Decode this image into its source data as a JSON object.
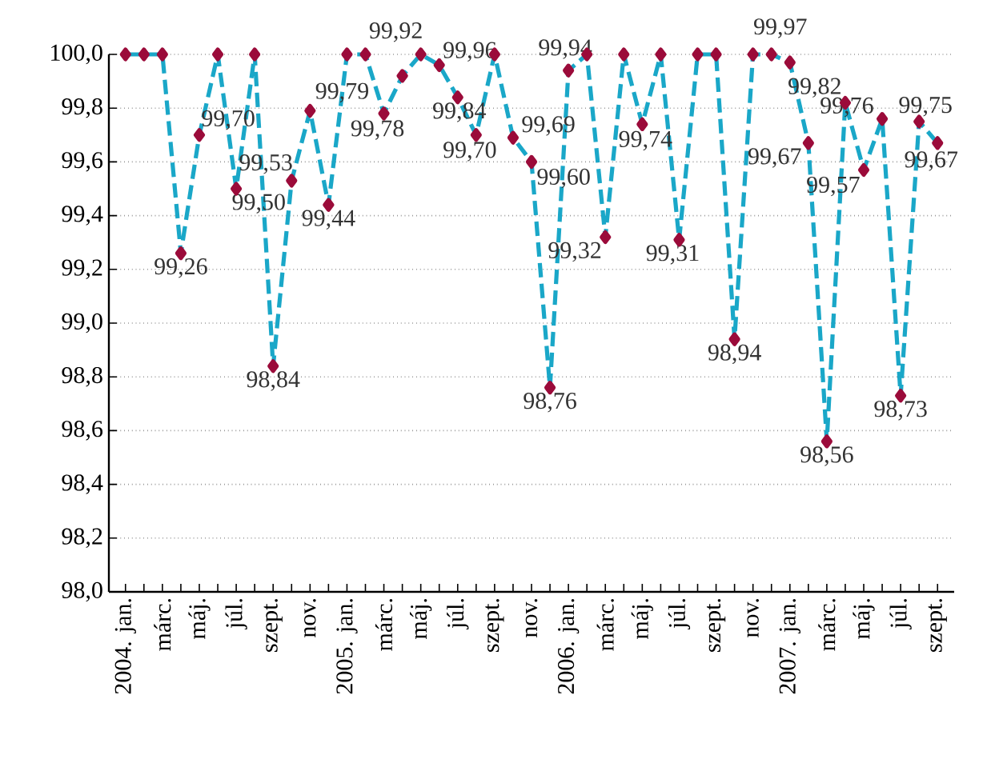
{
  "chart_data": {
    "type": "line",
    "categories": [
      "2004. jan.",
      null,
      "márc.",
      null,
      "máj.",
      null,
      "júl.",
      null,
      "szept.",
      null,
      "nov.",
      null,
      "2005. jan.",
      null,
      "márc.",
      null,
      "máj.",
      null,
      "júl.",
      null,
      "szept.",
      null,
      "nov.",
      null,
      "2006. jan.",
      null,
      "márc.",
      null,
      "máj.",
      null,
      "júl.",
      null,
      "szept.",
      null,
      "nov.",
      null,
      "2007. jan.",
      null,
      "márc.",
      null,
      "máj.",
      null,
      "júl.",
      null,
      "szept."
    ],
    "series": [
      {
        "color": "#1aa7c8",
        "values": [
          100,
          100,
          100,
          99.26,
          99.7,
          100,
          99.5,
          100,
          98.84,
          99.53,
          99.79,
          99.44,
          100,
          100,
          99.78,
          99.92,
          100,
          99.96,
          99.84,
          99.7,
          100,
          99.69,
          99.6,
          98.76,
          99.94,
          100,
          99.32,
          100,
          99.74,
          100,
          99.31,
          100,
          100,
          98.94,
          100,
          100,
          99.97,
          99.67,
          98.56,
          99.82,
          99.57,
          99.76,
          98.73,
          99.75,
          99.67
        ],
        "value_labels": [
          null,
          null,
          null,
          "99,26",
          "99,70",
          null,
          "99,50",
          null,
          "98,84",
          "99,53",
          "99,79",
          "99,44",
          null,
          null,
          "99,78",
          "99,92",
          null,
          "99,96",
          "99,84",
          "99,70",
          null,
          "99,69",
          "99,60",
          "98,76",
          "99,94",
          null,
          "99,32",
          null,
          "99,74",
          null,
          "99,31",
          null,
          null,
          "98,94",
          null,
          null,
          "99,97",
          "99,67",
          "98,56",
          "99,82",
          "99,57",
          "99,76",
          "98,73",
          "99,75",
          "99,67"
        ]
      }
    ],
    "ylim": [
      98.0,
      100.0
    ],
    "yticks": [
      {
        "value": 98.0,
        "label": "98,0"
      },
      {
        "value": 98.2,
        "label": "98,2"
      },
      {
        "value": 98.4,
        "label": "98,4"
      },
      {
        "value": 98.6,
        "label": "98,6"
      },
      {
        "value": 98.8,
        "label": "98,8"
      },
      {
        "value": 99.0,
        "label": "99,0"
      },
      {
        "value": 99.2,
        "label": "99,2"
      },
      {
        "value": 99.4,
        "label": "99,4"
      },
      {
        "value": 99.6,
        "label": "99,6"
      },
      {
        "value": 99.8,
        "label": "99,8"
      },
      {
        "value": 100.0,
        "label": "100,0"
      }
    ],
    "grid": "y",
    "marker": "diamond",
    "line_style": "dashed"
  }
}
